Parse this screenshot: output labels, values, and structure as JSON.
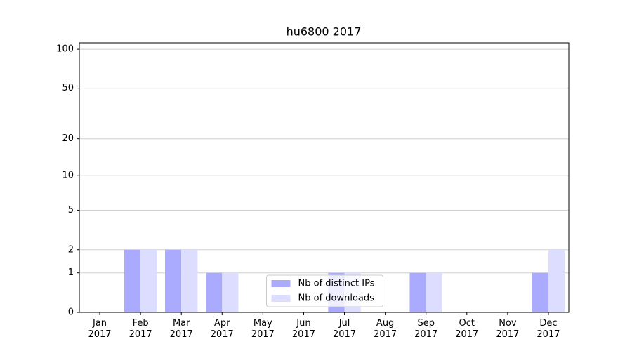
{
  "chart_data": {
    "type": "bar",
    "title": "hu6800 2017",
    "categories": [
      "Jan\n2017",
      "Feb\n2017",
      "Mar\n2017",
      "Apr\n2017",
      "May\n2017",
      "Jun\n2017",
      "Jul\n2017",
      "Aug\n2017",
      "Sep\n2017",
      "Oct\n2017",
      "Nov\n2017",
      "Dec\n2017"
    ],
    "series": [
      {
        "name": "Nb of distinct IPs",
        "color": "#aaaaff",
        "values": [
          0,
          2,
          2,
          1,
          0,
          0,
          1,
          0,
          1,
          0,
          0,
          1
        ]
      },
      {
        "name": "Nb of downloads",
        "color": "#ddddff",
        "values": [
          0,
          2,
          2,
          1,
          0,
          0,
          1,
          0,
          1,
          0,
          0,
          2
        ]
      }
    ],
    "yscale": "log1p",
    "ylim": [
      0,
      112
    ],
    "yticks": [
      0,
      1,
      2,
      5,
      10,
      20,
      50,
      100
    ],
    "grid": true,
    "legend": "lower center"
  }
}
